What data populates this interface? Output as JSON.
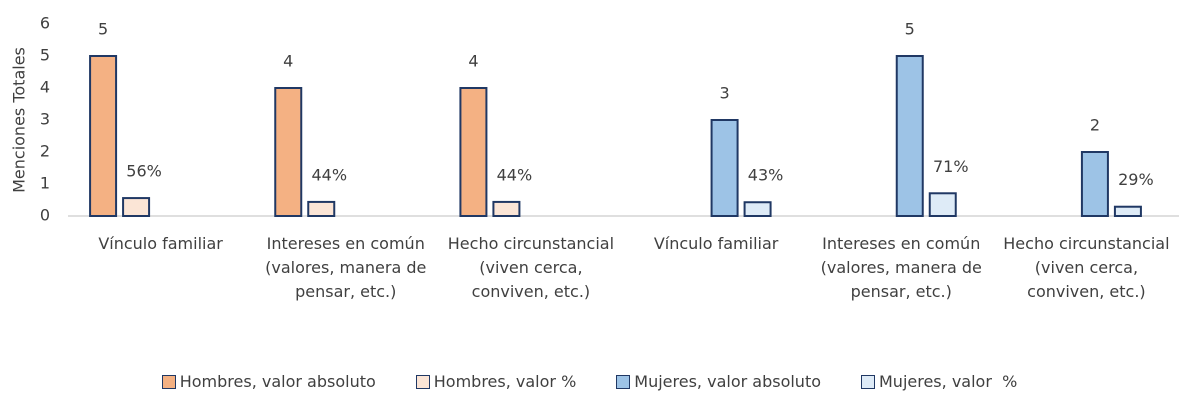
{
  "chart_data": {
    "type": "bar",
    "y_label": "Menciones Totales",
    "categories": [
      "Vínculo familiar",
      "Intereses en común (valores, manera de pensar, etc.)",
      "Hecho circunstancial (viven cerca, conviven, etc.)",
      "Vínculo familiar",
      "Intereses en común (valores, manera de pensar, etc.)",
      "Hecho circunstancial (viven cerca, conviven, etc.)"
    ],
    "series": [
      {
        "name": "Hombres, valor absoluto",
        "color": "#f4b183",
        "values": [
          5,
          4,
          4,
          null,
          null,
          null
        ]
      },
      {
        "name": "Hombres, valor %",
        "color": "#fbe5d6",
        "values": [
          0.56,
          0.44,
          0.44,
          null,
          null,
          null
        ],
        "value_labels": [
          "56%",
          "44%",
          "44%",
          null,
          null,
          null
        ]
      },
      {
        "name": "Mujeres, valor absoluto",
        "color": "#9dc3e6",
        "values": [
          null,
          null,
          null,
          3,
          5,
          2
        ]
      },
      {
        "name": "Mujeres, valor  %",
        "color": "#deebf7",
        "values": [
          null,
          null,
          null,
          0.43,
          0.71,
          0.29
        ],
        "value_labels": [
          null,
          null,
          null,
          "43%",
          "71%",
          "29%"
        ]
      }
    ],
    "ylim": [
      0,
      6
    ],
    "yticks": [
      0,
      1,
      2,
      3,
      4,
      5,
      6
    ],
    "grid": false,
    "legend": "bottom"
  }
}
